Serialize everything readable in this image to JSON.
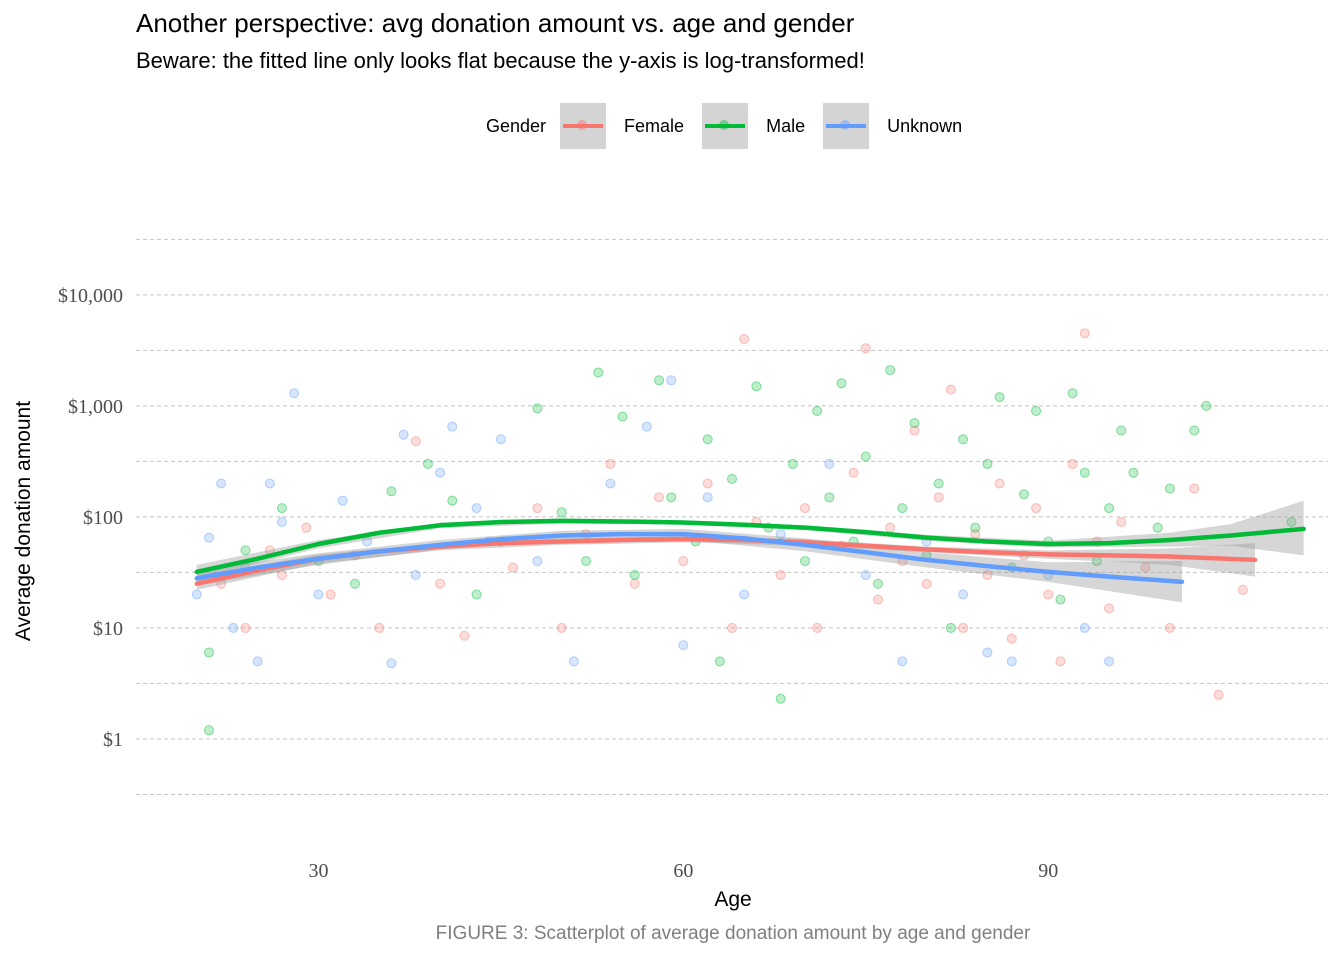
{
  "chart_data": {
    "type": "scatter",
    "title": "Another perspective: avg donation amount vs. age and gender",
    "subtitle": "Beware: the fitted line only looks flat because the y-axis is log-transformed!",
    "xlabel": "Age",
    "ylabel": "Average donation amount",
    "caption": "FIGURE 3: Scatterplot of average donation amount by age and gender",
    "y_scale": "log10",
    "xlim": [
      15,
      113
    ],
    "ylim": [
      0.3,
      40000
    ],
    "x_ticks": [
      30,
      60,
      90
    ],
    "y_ticks": [
      1,
      10,
      100,
      1000,
      10000
    ],
    "x_tick_labels": [
      "30",
      "60",
      "90"
    ],
    "y_tick_labels": [
      "$1",
      "$10",
      "$100",
      "$1,000",
      "$10,000"
    ],
    "grid": "horizontal dashed",
    "legend": {
      "title": "Gender",
      "position": "top",
      "entries": [
        {
          "name": "Female",
          "color": "#F8766D"
        },
        {
          "name": "Male",
          "color": "#00BA38"
        },
        {
          "name": "Unknown",
          "color": "#619CFF"
        }
      ]
    },
    "series": [
      {
        "name": "Female",
        "color": "#F8766D",
        "trend": [
          [
            20,
            25
          ],
          [
            25,
            33
          ],
          [
            30,
            42
          ],
          [
            35,
            49
          ],
          [
            40,
            54
          ],
          [
            45,
            58
          ],
          [
            50,
            60
          ],
          [
            55,
            62
          ],
          [
            60,
            63
          ],
          [
            65,
            62
          ],
          [
            70,
            59
          ],
          [
            75,
            55
          ],
          [
            80,
            51
          ],
          [
            85,
            48
          ],
          [
            90,
            46
          ],
          [
            95,
            45
          ],
          [
            100,
            44
          ],
          [
            107,
            41
          ]
        ],
        "ci_band": [
          [
            20,
            22,
            29
          ],
          [
            30,
            38,
            46
          ],
          [
            40,
            50,
            58
          ],
          [
            50,
            56,
            64
          ],
          [
            60,
            59,
            67
          ],
          [
            70,
            55,
            63
          ],
          [
            80,
            48,
            54
          ],
          [
            90,
            42,
            50
          ],
          [
            100,
            37,
            52
          ],
          [
            107,
            29,
            58
          ]
        ],
        "points": [
          [
            22,
            25
          ],
          [
            24,
            10
          ],
          [
            26,
            50
          ],
          [
            27,
            30
          ],
          [
            29,
            80
          ],
          [
            31,
            20
          ],
          [
            33,
            45
          ],
          [
            35,
            10
          ],
          [
            38,
            480
          ],
          [
            40,
            25
          ],
          [
            42,
            8.5
          ],
          [
            44,
            60
          ],
          [
            46,
            35
          ],
          [
            48,
            120
          ],
          [
            50,
            10
          ],
          [
            52,
            70
          ],
          [
            54,
            300
          ],
          [
            56,
            25
          ],
          [
            58,
            150
          ],
          [
            60,
            40
          ],
          [
            62,
            200
          ],
          [
            64,
            10
          ],
          [
            65,
            4000
          ],
          [
            66,
            90
          ],
          [
            68,
            30
          ],
          [
            70,
            120
          ],
          [
            71,
            10
          ],
          [
            73,
            55
          ],
          [
            74,
            250
          ],
          [
            75,
            3300
          ],
          [
            76,
            18
          ],
          [
            77,
            80
          ],
          [
            78,
            40
          ],
          [
            79,
            600
          ],
          [
            80,
            25
          ],
          [
            81,
            150
          ],
          [
            82,
            1400
          ],
          [
            83,
            10
          ],
          [
            84,
            70
          ],
          [
            85,
            30
          ],
          [
            86,
            200
          ],
          [
            87,
            8
          ],
          [
            88,
            45
          ],
          [
            89,
            120
          ],
          [
            90,
            20
          ],
          [
            91,
            5
          ],
          [
            92,
            300
          ],
          [
            93,
            4500
          ],
          [
            94,
            60
          ],
          [
            95,
            15
          ],
          [
            96,
            90
          ],
          [
            98,
            35
          ],
          [
            100,
            10
          ],
          [
            102,
            180
          ],
          [
            104,
            2.5
          ],
          [
            106,
            22
          ]
        ]
      },
      {
        "name": "Male",
        "color": "#00BA38",
        "trend": [
          [
            20,
            32
          ],
          [
            25,
            42
          ],
          [
            30,
            57
          ],
          [
            35,
            72
          ],
          [
            40,
            84
          ],
          [
            45,
            90
          ],
          [
            50,
            92
          ],
          [
            55,
            91
          ],
          [
            60,
            89
          ],
          [
            65,
            85
          ],
          [
            70,
            80
          ],
          [
            75,
            73
          ],
          [
            80,
            65
          ],
          [
            85,
            60
          ],
          [
            90,
            57
          ],
          [
            95,
            58
          ],
          [
            100,
            62
          ],
          [
            105,
            68
          ],
          [
            111,
            78
          ]
        ],
        "ci_band": [
          [
            20,
            28,
            37
          ],
          [
            30,
            52,
            62
          ],
          [
            40,
            79,
            89
          ],
          [
            50,
            87,
            97
          ],
          [
            60,
            85,
            93
          ],
          [
            70,
            76,
            84
          ],
          [
            80,
            61,
            69
          ],
          [
            90,
            53,
            61
          ],
          [
            100,
            54,
            72
          ],
          [
            105,
            55,
            86
          ],
          [
            111,
            45,
            140
          ]
        ],
        "points": [
          [
            21,
            6
          ],
          [
            21,
            1.2
          ],
          [
            24,
            50
          ],
          [
            27,
            120
          ],
          [
            30,
            40
          ],
          [
            33,
            25
          ],
          [
            36,
            170
          ],
          [
            39,
            300
          ],
          [
            41,
            140
          ],
          [
            43,
            20
          ],
          [
            45,
            60
          ],
          [
            48,
            950
          ],
          [
            50,
            110
          ],
          [
            52,
            40
          ],
          [
            53,
            2000
          ],
          [
            55,
            800
          ],
          [
            56,
            30
          ],
          [
            58,
            1700
          ],
          [
            59,
            150
          ],
          [
            61,
            60
          ],
          [
            62,
            500
          ],
          [
            63,
            5
          ],
          [
            64,
            220
          ],
          [
            66,
            1500
          ],
          [
            67,
            80
          ],
          [
            68,
            2.3
          ],
          [
            69,
            300
          ],
          [
            70,
            40
          ],
          [
            71,
            900
          ],
          [
            72,
            150
          ],
          [
            73,
            1600
          ],
          [
            74,
            60
          ],
          [
            75,
            350
          ],
          [
            76,
            25
          ],
          [
            77,
            2100
          ],
          [
            78,
            120
          ],
          [
            79,
            700
          ],
          [
            80,
            45
          ],
          [
            81,
            200
          ],
          [
            82,
            10
          ],
          [
            83,
            500
          ],
          [
            84,
            80
          ],
          [
            85,
            300
          ],
          [
            86,
            1200
          ],
          [
            87,
            35
          ],
          [
            88,
            160
          ],
          [
            89,
            900
          ],
          [
            90,
            60
          ],
          [
            91,
            18
          ],
          [
            92,
            1300
          ],
          [
            93,
            250
          ],
          [
            94,
            40
          ],
          [
            95,
            120
          ],
          [
            96,
            600
          ],
          [
            97,
            250
          ],
          [
            99,
            80
          ],
          [
            100,
            180
          ],
          [
            102,
            600
          ],
          [
            103,
            1000
          ],
          [
            110,
            90
          ]
        ]
      },
      {
        "name": "Unknown",
        "color": "#619CFF",
        "trend": [
          [
            20,
            28
          ],
          [
            25,
            35
          ],
          [
            30,
            42
          ],
          [
            35,
            49
          ],
          [
            40,
            56
          ],
          [
            45,
            63
          ],
          [
            50,
            68
          ],
          [
            55,
            70
          ],
          [
            60,
            70
          ],
          [
            65,
            64
          ],
          [
            70,
            56
          ],
          [
            75,
            48
          ],
          [
            80,
            41
          ],
          [
            85,
            36
          ],
          [
            90,
            32
          ],
          [
            95,
            29
          ],
          [
            101,
            26
          ]
        ],
        "ci_band": [
          [
            20,
            24,
            33
          ],
          [
            30,
            37,
            47
          ],
          [
            40,
            51,
            62
          ],
          [
            50,
            61,
            75
          ],
          [
            60,
            62,
            78
          ],
          [
            70,
            49,
            64
          ],
          [
            80,
            35,
            48
          ],
          [
            90,
            26,
            39
          ],
          [
            101,
            17,
            40
          ]
        ],
        "points": [
          [
            20,
            20
          ],
          [
            21,
            65
          ],
          [
            22,
            200
          ],
          [
            23,
            10
          ],
          [
            24,
            35
          ],
          [
            25,
            5
          ],
          [
            26,
            200
          ],
          [
            27,
            90
          ],
          [
            28,
            1300
          ],
          [
            30,
            20
          ],
          [
            32,
            140
          ],
          [
            34,
            60
          ],
          [
            36,
            4.8
          ],
          [
            37,
            550
          ],
          [
            38,
            30
          ],
          [
            40,
            250
          ],
          [
            41,
            650
          ],
          [
            43,
            120
          ],
          [
            45,
            500
          ],
          [
            48,
            40
          ],
          [
            51,
            5
          ],
          [
            54,
            200
          ],
          [
            57,
            650
          ],
          [
            59,
            1700
          ],
          [
            60,
            7
          ],
          [
            62,
            150
          ],
          [
            65,
            20
          ],
          [
            68,
            70
          ],
          [
            72,
            300
          ],
          [
            75,
            30
          ],
          [
            78,
            5
          ],
          [
            80,
            60
          ],
          [
            83,
            20
          ],
          [
            85,
            6
          ],
          [
            87,
            5
          ],
          [
            90,
            30
          ],
          [
            93,
            10
          ],
          [
            95,
            5
          ]
        ]
      }
    ]
  }
}
